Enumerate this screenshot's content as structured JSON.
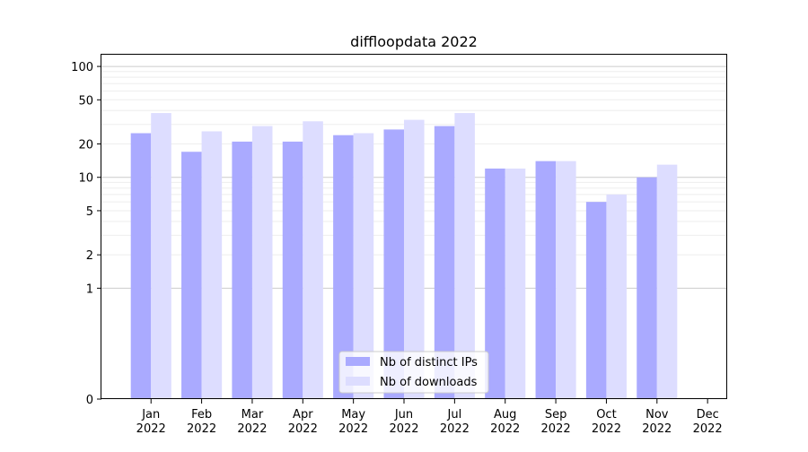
{
  "chart_data": {
    "type": "bar",
    "title": "diffloopdata 2022",
    "xlabel": "",
    "ylabel": "",
    "y_scale": "symlog",
    "ylim": [
      0,
      130
    ],
    "y_ticks": [
      0,
      1,
      2,
      5,
      10,
      20,
      50,
      100
    ],
    "categories": [
      [
        "Jan",
        "2022"
      ],
      [
        "Feb",
        "2022"
      ],
      [
        "Mar",
        "2022"
      ],
      [
        "Apr",
        "2022"
      ],
      [
        "May",
        "2022"
      ],
      [
        "Jun",
        "2022"
      ],
      [
        "Jul",
        "2022"
      ],
      [
        "Aug",
        "2022"
      ],
      [
        "Sep",
        "2022"
      ],
      [
        "Oct",
        "2022"
      ],
      [
        "Nov",
        "2022"
      ],
      [
        "Dec",
        "2022"
      ]
    ],
    "series": [
      {
        "name": "Nb of distinct IPs",
        "color": "#aaaaff",
        "values": [
          25,
          17,
          21,
          21,
          24,
          27,
          29,
          12,
          14,
          6,
          10,
          0
        ]
      },
      {
        "name": "Nb of downloads",
        "color": "#ddddff",
        "values": [
          38,
          26,
          29,
          32,
          25,
          33,
          38,
          12,
          14,
          7,
          13,
          0
        ]
      }
    ],
    "grid": true,
    "legend_position": "bottom-center"
  }
}
